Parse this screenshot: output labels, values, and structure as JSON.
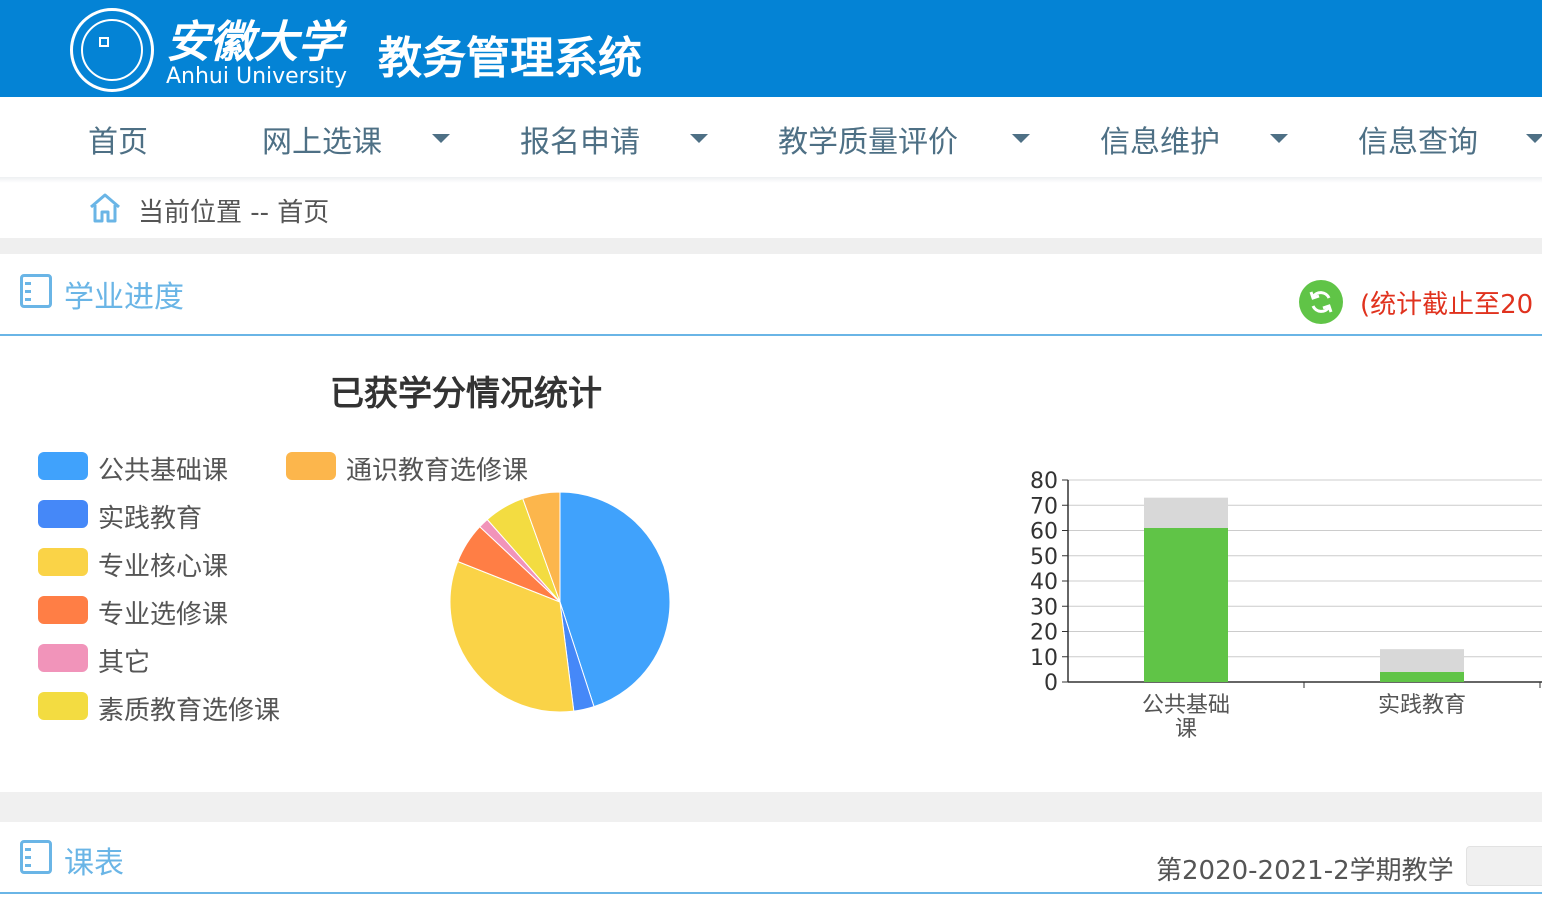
{
  "header": {
    "university_cn": "安徽大学",
    "university_en": "Anhui University",
    "system_title": "教务管理系统",
    "logo_icon": "university-seal-icon",
    "bg_color": "#0483d5"
  },
  "nav": {
    "items": [
      {
        "label": "首页",
        "has_caret": false
      },
      {
        "label": "网上选课",
        "has_caret": true
      },
      {
        "label": "报名申请",
        "has_caret": true
      },
      {
        "label": "教学质量评价",
        "has_caret": true
      },
      {
        "label": "信息维护",
        "has_caret": true
      },
      {
        "label": "信息查询",
        "has_caret": true
      }
    ],
    "text_color": "#4e7085"
  },
  "breadcrumb": {
    "icon": "home-icon",
    "text": "当前位置 -- 首页"
  },
  "progress_section": {
    "title": "学业进度",
    "icon": "notebook-icon",
    "refresh_icon": "refresh-icon",
    "note": "(统计截止至20"
  },
  "chart_data": [
    {
      "type": "pie",
      "title": "已获学分情况统计",
      "legend": "left",
      "slices": [
        {
          "name": "公共基础课",
          "value": 45,
          "color": "#40a2fc"
        },
        {
          "name": "实践教育",
          "value": 3,
          "color": "#4588f8"
        },
        {
          "name": "专业核心课",
          "value": 33,
          "color": "#fad347"
        },
        {
          "name": "专业选修课",
          "value": 6,
          "color": "#ff7e45"
        },
        {
          "name": "其它",
          "value": 1.5,
          "color": "#f194ba"
        },
        {
          "name": "素质教育选修课",
          "value": 6,
          "color": "#f3dc41"
        },
        {
          "name": "通识教育选修课",
          "value": 5.5,
          "color": "#fcb64c"
        }
      ]
    },
    {
      "type": "bar",
      "stacked": true,
      "categories": [
        "公共基础课",
        "实践教育"
      ],
      "series": [
        {
          "values": [
            61,
            4
          ],
          "color": "#60c447"
        },
        {
          "values": [
            12,
            9
          ],
          "color": "#d8d8d8"
        }
      ],
      "ylim": [
        0,
        80
      ],
      "yticks": [
        0,
        10,
        20,
        30,
        40,
        50,
        60,
        70,
        80
      ],
      "grid": true
    }
  ],
  "schedule_section": {
    "title": "课表",
    "icon": "notebook-icon",
    "term_label": "第2020-2021-2学期教学"
  },
  "colors": {
    "band": "#efefef",
    "band2": "#f0f0f0",
    "section_accent": "#6ab5e6",
    "breadcrumb_text": "#555555",
    "chart_title": "#333333"
  }
}
